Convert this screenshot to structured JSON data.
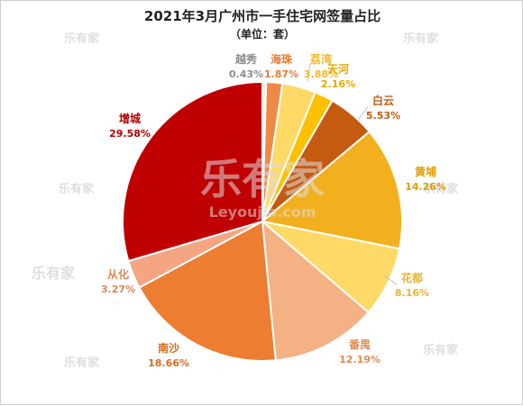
{
  "chart_data": {
    "type": "pie",
    "title": "2021年3月广州市一手住宅网签量占比",
    "subtitle": "（单位：套）",
    "start_angle_deg": 0,
    "direction": "clockwise",
    "slices": [
      {
        "name": "越秀",
        "value": 0.43,
        "label": "0.43%",
        "color": "#fbe8d8",
        "label_color": "#8c8c8c"
      },
      {
        "name": "海珠",
        "value": 1.87,
        "label": "1.87%",
        "color": "#ef8a46",
        "label_color": "#e87a33"
      },
      {
        "name": "荔湾",
        "value": 3.88,
        "label": "3.88%",
        "color": "#ffd966",
        "label_color": "#f2b82c"
      },
      {
        "name": "天河",
        "value": 2.16,
        "label": "2.16%",
        "color": "#ffc000",
        "label_color": "#e3a800"
      },
      {
        "name": "白云",
        "value": 5.53,
        "label": "5.53%",
        "color": "#c55a11",
        "label_color": "#c55a11"
      },
      {
        "name": "黄埔",
        "value": 14.26,
        "label": "14.26%",
        "color": "#f2b01e",
        "label_color": "#e09c00"
      },
      {
        "name": "花都",
        "value": 8.16,
        "label": "8.16%",
        "color": "#ffd966",
        "label_color": "#e8b43a"
      },
      {
        "name": "番禺",
        "value": 12.19,
        "label": "12.19%",
        "color": "#f4b183",
        "label_color": "#e08a55"
      },
      {
        "name": "南沙",
        "value": 18.66,
        "label": "18.66%",
        "color": "#ed7d31",
        "label_color": "#d86a20"
      },
      {
        "name": "从化",
        "value": 3.27,
        "label": "3.27%",
        "color": "#f4a582",
        "label_color": "#e0855a"
      },
      {
        "name": "增城",
        "value": 29.58,
        "label": "29.58%",
        "color": "#c00000",
        "label_color": "#b00000"
      }
    ]
  },
  "watermark": {
    "brand": "乐有家",
    "site": "Leyoujia.com"
  }
}
